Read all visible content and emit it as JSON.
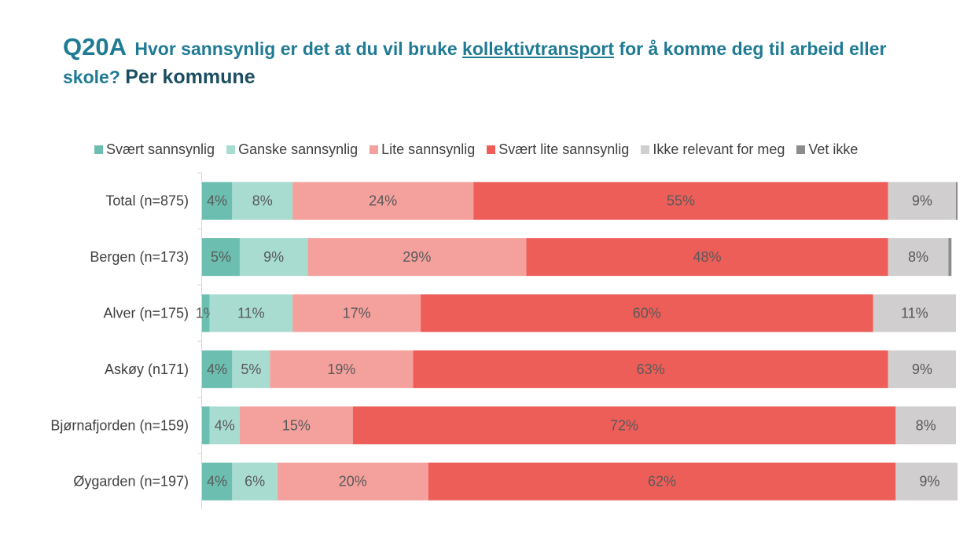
{
  "title": {
    "qid": "Q20A",
    "text_before": "Hvor sannsynlig er det at du vil bruke",
    "keyword": "kollektivtransport",
    "text_after": "for å komme deg til arbeid eller skole?",
    "suffix": "Per kommune"
  },
  "chart_data": {
    "type": "bar",
    "orientation": "horizontal",
    "stacked": "100%",
    "legend_position": "top",
    "categories": [
      "Total (n=875)",
      "Bergen (n=173)",
      "Alver (n=175)",
      "Askøy (n171)",
      "Bjørnafjorden (n=159)",
      "Øygarden (n=197)"
    ],
    "series": [
      {
        "name": "Svært sannsynlig",
        "color": "#6CBFB0",
        "values": [
          4,
          5,
          1,
          4,
          1,
          4
        ],
        "labels": [
          "4%",
          "5%",
          "1%",
          "4%",
          "",
          "4%"
        ]
      },
      {
        "name": "Ganske sannsynlig",
        "color": "#A8DCD1",
        "values": [
          8,
          9,
          11,
          5,
          4,
          6
        ],
        "labels": [
          "8%",
          "9%",
          "11%",
          "5%",
          "4%",
          "6%"
        ]
      },
      {
        "name": "Lite sannsynlig",
        "color": "#F4A19D",
        "values": [
          24,
          29,
          17,
          19,
          15,
          20
        ],
        "labels": [
          "24%",
          "29%",
          "17%",
          "19%",
          "15%",
          "20%"
        ]
      },
      {
        "name": "Svært lite sannsynlig",
        "color": "#EE5E59",
        "values": [
          55,
          48,
          60,
          63,
          72,
          62
        ],
        "labels": [
          "55%",
          "48%",
          "60%",
          "63%",
          "72%",
          "62%"
        ]
      },
      {
        "name": "Ikke relevant for meg",
        "color": "#D0CECE",
        "values": [
          9,
          8,
          11,
          9,
          8,
          9
        ],
        "labels": [
          "9%",
          "8%",
          "11%",
          "9%",
          "8%",
          "9%"
        ]
      },
      {
        "name": "Vet ikke",
        "color": "#8C8C8C",
        "values": [
          0.4,
          0.4,
          0,
          0,
          0,
          0
        ],
        "labels": [
          "",
          "",
          "",
          "",
          "",
          ""
        ]
      }
    ]
  }
}
